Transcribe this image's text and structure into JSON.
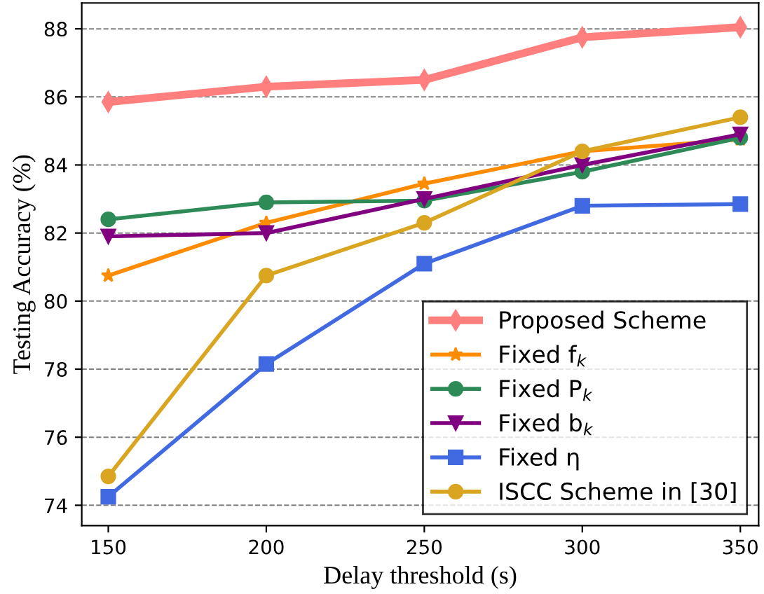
{
  "chart_data": {
    "type": "line",
    "xlabel": "Delay threshold (s)",
    "ylabel": "Testing Accuracy (%)",
    "x": [
      150,
      200,
      250,
      300,
      350
    ],
    "xlim": [
      141.6,
      355.8
    ],
    "xticks": [
      150,
      200,
      250,
      300,
      350
    ],
    "ylim": [
      73.4,
      88.76
    ],
    "yticks": [
      74,
      76,
      78,
      80,
      82,
      84,
      86,
      88
    ],
    "grid": "y",
    "legend": "bottom right",
    "series": [
      {
        "name": "Proposed Scheme",
        "color": "#ff7f7f",
        "marker": "diamond",
        "values": [
          85.85,
          86.3,
          86.5,
          87.75,
          88.05
        ]
      },
      {
        "name": "Fixed f$_{k}$",
        "color": "#ff8c00",
        "marker": "star",
        "values": [
          80.75,
          82.3,
          83.45,
          84.4,
          84.75
        ]
      },
      {
        "name": "Fixed P$_{k}$",
        "color": "#2e8b57",
        "marker": "circle",
        "values": [
          82.4,
          82.9,
          82.95,
          83.8,
          84.8
        ]
      },
      {
        "name": "Fixed b$_{k}$",
        "color": "#800080",
        "marker": "triangle",
        "values": [
          81.9,
          82.0,
          83.0,
          84.0,
          84.9
        ]
      },
      {
        "name": "Fixed η",
        "color": "#4169e1",
        "marker": "square",
        "values": [
          74.25,
          78.15,
          81.1,
          82.8,
          82.85
        ]
      },
      {
        "name": "ISCC Scheme in [30]",
        "color": "#daa520",
        "marker": "circle",
        "values": [
          74.85,
          80.75,
          82.3,
          84.4,
          85.4
        ]
      }
    ]
  }
}
